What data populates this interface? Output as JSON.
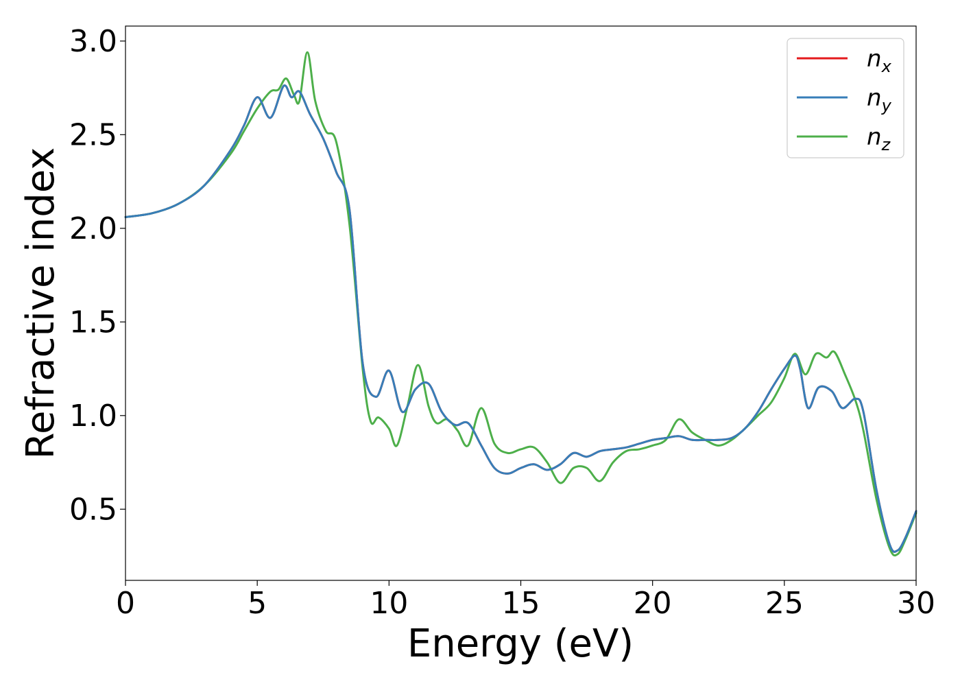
{
  "chart_data": {
    "type": "line",
    "xlabel": "Energy (eV)",
    "ylabel": "Refractive index",
    "xlim": [
      0,
      30
    ],
    "ylim": [
      0.12,
      3.08
    ],
    "xticks": [
      "0",
      "5",
      "10",
      "15",
      "20",
      "25",
      "30"
    ],
    "yticks": [
      "0.5",
      "1.0",
      "1.5",
      "2.0",
      "2.5",
      "3.0"
    ],
    "grid": false,
    "legend_position": "top-right",
    "series": [
      {
        "name": "n",
        "subscript": "x",
        "color": "#e41a1c",
        "x": [
          0,
          1,
          2,
          3,
          4,
          4.5,
          5,
          5.5,
          6,
          6.3,
          6.6,
          7,
          7.5,
          8,
          8.5,
          9,
          9.5,
          10,
          10.5,
          11,
          11.5,
          12,
          12.5,
          13,
          13.5,
          14,
          14.5,
          15,
          15.5,
          16,
          16.5,
          17,
          17.5,
          18,
          18.5,
          19,
          19.5,
          20,
          20.5,
          21,
          21.5,
          22,
          22.5,
          23,
          23.5,
          24,
          24.5,
          25,
          25.4,
          25.6,
          25.9,
          26.3,
          26.8,
          27.2,
          27.7,
          28,
          28.5,
          29,
          29.3,
          29.6,
          30
        ],
        "y": [
          2.06,
          2.08,
          2.13,
          2.23,
          2.42,
          2.55,
          2.7,
          2.59,
          2.76,
          2.7,
          2.73,
          2.61,
          2.48,
          2.3,
          2.1,
          1.28,
          1.1,
          1.24,
          1.02,
          1.14,
          1.17,
          1.02,
          0.95,
          0.96,
          0.84,
          0.72,
          0.69,
          0.72,
          0.74,
          0.71,
          0.74,
          0.8,
          0.78,
          0.81,
          0.82,
          0.83,
          0.85,
          0.87,
          0.88,
          0.89,
          0.87,
          0.87,
          0.87,
          0.88,
          0.93,
          1.02,
          1.14,
          1.25,
          1.32,
          1.25,
          1.04,
          1.15,
          1.13,
          1.04,
          1.09,
          1.02,
          0.6,
          0.31,
          0.28,
          0.35,
          0.49
        ]
      },
      {
        "name": "n",
        "subscript": "y",
        "color": "#377eb8",
        "x": [
          0,
          1,
          2,
          3,
          4,
          4.5,
          5,
          5.5,
          6,
          6.3,
          6.6,
          7,
          7.5,
          8,
          8.5,
          9,
          9.5,
          10,
          10.5,
          11,
          11.5,
          12,
          12.5,
          13,
          13.5,
          14,
          14.5,
          15,
          15.5,
          16,
          16.5,
          17,
          17.5,
          18,
          18.5,
          19,
          19.5,
          20,
          20.5,
          21,
          21.5,
          22,
          22.5,
          23,
          23.5,
          24,
          24.5,
          25,
          25.4,
          25.6,
          25.9,
          26.3,
          26.8,
          27.2,
          27.7,
          28,
          28.5,
          29,
          29.3,
          29.6,
          30
        ],
        "y": [
          2.06,
          2.08,
          2.13,
          2.23,
          2.42,
          2.55,
          2.7,
          2.59,
          2.76,
          2.7,
          2.73,
          2.61,
          2.48,
          2.3,
          2.1,
          1.28,
          1.1,
          1.24,
          1.02,
          1.14,
          1.17,
          1.02,
          0.95,
          0.96,
          0.84,
          0.72,
          0.69,
          0.72,
          0.74,
          0.71,
          0.74,
          0.8,
          0.78,
          0.81,
          0.82,
          0.83,
          0.85,
          0.87,
          0.88,
          0.89,
          0.87,
          0.87,
          0.87,
          0.88,
          0.93,
          1.02,
          1.14,
          1.25,
          1.32,
          1.25,
          1.04,
          1.15,
          1.13,
          1.04,
          1.09,
          1.02,
          0.6,
          0.31,
          0.28,
          0.35,
          0.49
        ]
      },
      {
        "name": "n",
        "subscript": "z",
        "color": "#4daf4a",
        "x": [
          0,
          1,
          2,
          3,
          4,
          4.5,
          5,
          5.5,
          5.8,
          6.1,
          6.4,
          6.6,
          6.9,
          7.2,
          7.6,
          8,
          8.5,
          9,
          9.3,
          9.6,
          10,
          10.3,
          10.7,
          11.1,
          11.5,
          11.8,
          12.2,
          12.6,
          13,
          13.5,
          14,
          14.5,
          15,
          15.5,
          16,
          16.5,
          17,
          17.5,
          18,
          18.5,
          19,
          19.5,
          20,
          20.5,
          21,
          21.5,
          22,
          22.5,
          23,
          23.5,
          24,
          24.5,
          25,
          25.4,
          25.8,
          26.2,
          26.6,
          26.9,
          27.3,
          27.7,
          28,
          28.5,
          29,
          29.3,
          29.6,
          30
        ],
        "y": [
          2.06,
          2.08,
          2.13,
          2.23,
          2.4,
          2.52,
          2.64,
          2.73,
          2.74,
          2.8,
          2.71,
          2.68,
          2.94,
          2.68,
          2.52,
          2.46,
          2.02,
          1.25,
          0.97,
          0.99,
          0.93,
          0.84,
          1.05,
          1.27,
          1.05,
          0.96,
          0.98,
          0.92,
          0.84,
          1.04,
          0.85,
          0.8,
          0.82,
          0.83,
          0.75,
          0.64,
          0.72,
          0.72,
          0.65,
          0.75,
          0.81,
          0.82,
          0.84,
          0.87,
          0.98,
          0.91,
          0.87,
          0.84,
          0.87,
          0.93,
          1.0,
          1.07,
          1.2,
          1.33,
          1.22,
          1.33,
          1.31,
          1.34,
          1.22,
          1.08,
          0.92,
          0.55,
          0.29,
          0.26,
          0.34,
          0.48
        ]
      }
    ]
  }
}
